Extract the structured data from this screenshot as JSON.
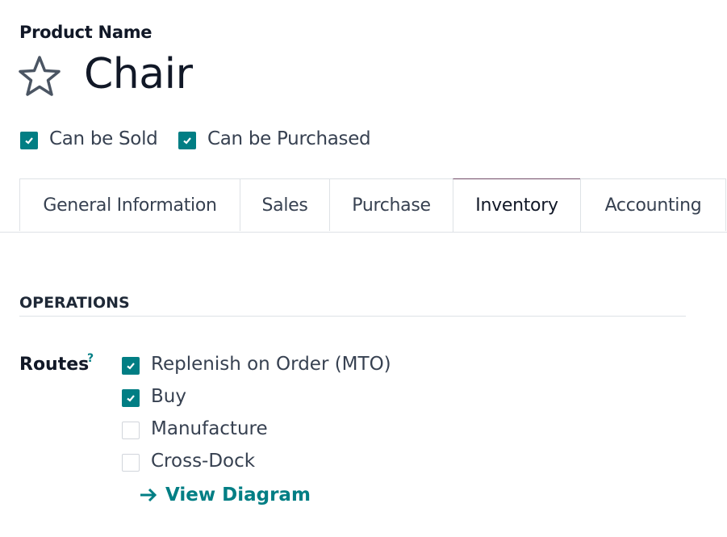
{
  "header": {
    "field_label": "Product Name",
    "product_name": "Chair",
    "favorite_icon": "star-outline-icon"
  },
  "flags": [
    {
      "label": "Can be Sold",
      "checked": true
    },
    {
      "label": "Can be Purchased",
      "checked": true
    }
  ],
  "tabs": [
    {
      "label": "General Information",
      "active": false
    },
    {
      "label": "Sales",
      "active": false
    },
    {
      "label": "Purchase",
      "active": false
    },
    {
      "label": "Inventory",
      "active": true
    },
    {
      "label": "Accounting",
      "active": false
    }
  ],
  "operations": {
    "section_title": "OPERATIONS",
    "routes_label": "Routes",
    "help_mark": "?",
    "routes": [
      {
        "label": "Replenish on Order (MTO)",
        "checked": true
      },
      {
        "label": "Buy",
        "checked": true
      },
      {
        "label": "Manufacture",
        "checked": false
      },
      {
        "label": "Cross-Dock",
        "checked": false
      }
    ],
    "view_diagram": "View Diagram"
  },
  "colors": {
    "accent": "#017e84",
    "active_tab_border": "#714b67"
  }
}
